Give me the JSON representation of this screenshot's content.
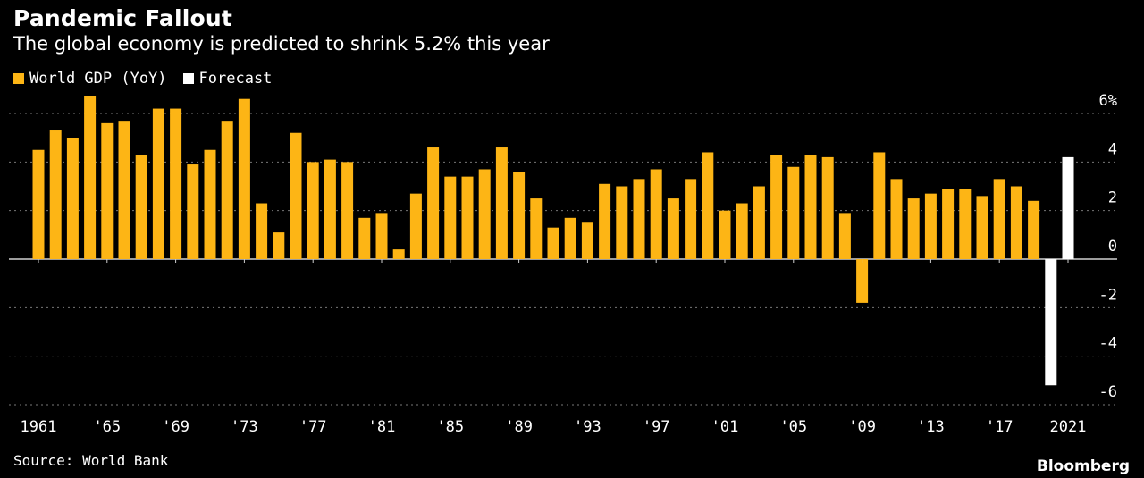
{
  "title": "Pandemic Fallout",
  "subtitle": "The global economy is predicted to shrink 5.2% this year",
  "source": "Source: World Bank",
  "brand": "Bloomberg",
  "colors": {
    "gdp": "#FDB515",
    "forecast": "#FFFFFF",
    "grid": "#777777",
    "background": "#000000"
  },
  "chart_data": {
    "type": "bar",
    "x": [
      1961,
      1962,
      1963,
      1964,
      1965,
      1966,
      1967,
      1968,
      1969,
      1970,
      1971,
      1972,
      1973,
      1974,
      1975,
      1976,
      1977,
      1978,
      1979,
      1980,
      1981,
      1982,
      1983,
      1984,
      1985,
      1986,
      1987,
      1988,
      1989,
      1990,
      1991,
      1992,
      1993,
      1994,
      1995,
      1996,
      1997,
      1998,
      1999,
      2000,
      2001,
      2002,
      2003,
      2004,
      2005,
      2006,
      2007,
      2008,
      2009,
      2010,
      2011,
      2012,
      2013,
      2014,
      2015,
      2016,
      2017,
      2018,
      2019,
      2020,
      2021
    ],
    "series": [
      {
        "name": "World GDP (YoY)",
        "values": [
          4.5,
          5.3,
          5.0,
          6.7,
          5.6,
          5.7,
          4.3,
          6.2,
          6.2,
          3.9,
          4.5,
          5.7,
          6.6,
          2.3,
          1.1,
          5.2,
          4.0,
          4.1,
          4.0,
          1.7,
          1.9,
          0.4,
          2.7,
          4.6,
          3.4,
          3.4,
          3.7,
          4.6,
          3.6,
          2.5,
          1.3,
          1.7,
          1.5,
          3.1,
          3.0,
          3.3,
          3.7,
          2.5,
          3.3,
          4.4,
          2.0,
          2.3,
          3.0,
          4.3,
          3.8,
          4.3,
          4.2,
          1.9,
          -1.8,
          4.4,
          3.3,
          2.5,
          2.7,
          2.9,
          2.9,
          2.6,
          3.3,
          3.0,
          2.4,
          null,
          null
        ]
      },
      {
        "name": "Forecast",
        "values": [
          null,
          null,
          null,
          null,
          null,
          null,
          null,
          null,
          null,
          null,
          null,
          null,
          null,
          null,
          null,
          null,
          null,
          null,
          null,
          null,
          null,
          null,
          null,
          null,
          null,
          null,
          null,
          null,
          null,
          null,
          null,
          null,
          null,
          null,
          null,
          null,
          null,
          null,
          null,
          null,
          null,
          null,
          null,
          null,
          null,
          null,
          null,
          null,
          null,
          null,
          null,
          null,
          null,
          null,
          null,
          null,
          null,
          null,
          null,
          -5.2,
          4.2
        ]
      }
    ],
    "xtick_labels": [
      {
        "year": 1961,
        "label": "1961"
      },
      {
        "year": 1965,
        "label": "'65"
      },
      {
        "year": 1969,
        "label": "'69"
      },
      {
        "year": 1973,
        "label": "'73"
      },
      {
        "year": 1977,
        "label": "'77"
      },
      {
        "year": 1981,
        "label": "'81"
      },
      {
        "year": 1985,
        "label": "'85"
      },
      {
        "year": 1989,
        "label": "'89"
      },
      {
        "year": 1993,
        "label": "'93"
      },
      {
        "year": 1997,
        "label": "'97"
      },
      {
        "year": 2001,
        "label": "'01"
      },
      {
        "year": 2005,
        "label": "'05"
      },
      {
        "year": 2009,
        "label": "'09"
      },
      {
        "year": 2013,
        "label": "'13"
      },
      {
        "year": 2017,
        "label": "'17"
      },
      {
        "year": 2021,
        "label": "2021"
      }
    ],
    "yticks": [
      6,
      4,
      2,
      0,
      -2,
      -4,
      -6
    ],
    "ytick_labels": [
      "6%",
      "4",
      "2",
      "0",
      "-2",
      "-4",
      "-6"
    ],
    "ylim": [
      -6,
      6
    ],
    "grid": true,
    "legend_position": "top-left"
  }
}
